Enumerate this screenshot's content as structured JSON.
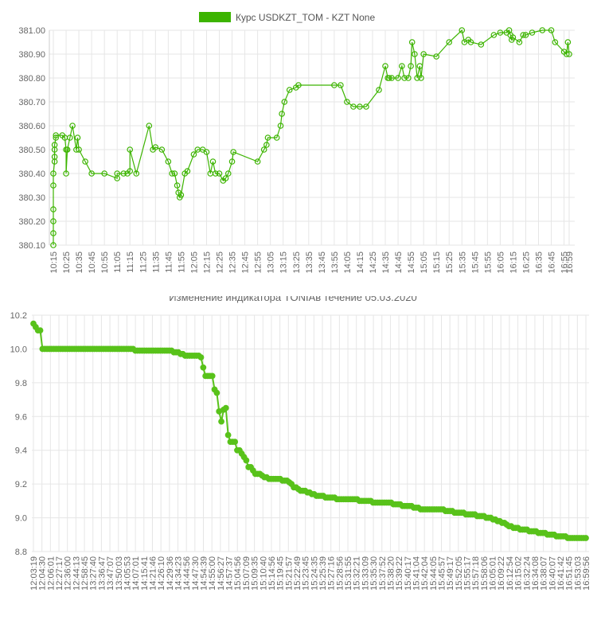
{
  "chart_data": [
    {
      "type": "line",
      "legend": {
        "label": "Курс USDKZT_TOM - KZT None",
        "color": "#3cb400"
      },
      "ylim": [
        380.1,
        381.0
      ],
      "y_ticks": [
        "381.00",
        "380.90",
        "380.80",
        "380.70",
        "380.60",
        "380.50",
        "380.40",
        "380.30",
        "380.20",
        "380.10"
      ],
      "x_ticks": [
        "10:15",
        "10:25",
        "10:35",
        "10:45",
        "10:55",
        "11:05",
        "11:15",
        "11:25",
        "11:35",
        "11:45",
        "11:55",
        "12:05",
        "12:15",
        "12:25",
        "12:35",
        "12:45",
        "12:55",
        "13:05",
        "13:15",
        "13:25",
        "13:35",
        "13:45",
        "13:55",
        "14:05",
        "14:15",
        "14:25",
        "14:35",
        "14:45",
        "14:55",
        "15:05",
        "15:15",
        "15:25",
        "15:35",
        "15:45",
        "15:55",
        "16:05",
        "16:15",
        "16:25",
        "16:35",
        "16:45",
        "16:55",
        "16:59"
      ],
      "series": [
        {
          "color": "#3cb400",
          "points": [
            [
              "10:15",
              380.1
            ],
            [
              "10:15",
              380.15
            ],
            [
              "10:15",
              380.2
            ],
            [
              "10:15",
              380.25
            ],
            [
              "10:15",
              380.35
            ],
            [
              "10:15",
              380.4
            ],
            [
              "10:16",
              380.45
            ],
            [
              "10:16",
              380.47
            ],
            [
              "10:16",
              380.5
            ],
            [
              "10:16",
              380.52
            ],
            [
              "10:17",
              380.55
            ],
            [
              "10:17",
              380.56
            ],
            [
              "10:22",
              380.56
            ],
            [
              "10:24",
              380.55
            ],
            [
              "10:25",
              380.5
            ],
            [
              "10:25",
              380.4
            ],
            [
              "10:26",
              380.5
            ],
            [
              "10:28",
              380.55
            ],
            [
              "10:30",
              380.6
            ],
            [
              "10:33",
              380.5
            ],
            [
              "10:34",
              380.55
            ],
            [
              "10:35",
              380.5
            ],
            [
              "10:40",
              380.45
            ],
            [
              "10:45",
              380.4
            ],
            [
              "10:55",
              380.4
            ],
            [
              "11:05",
              380.38
            ],
            [
              "11:05",
              380.4
            ],
            [
              "11:10",
              380.4
            ],
            [
              "11:13",
              380.4
            ],
            [
              "11:15",
              380.41
            ],
            [
              "11:15",
              380.5
            ],
            [
              "11:20",
              380.4
            ],
            [
              "11:30",
              380.6
            ],
            [
              "11:33",
              380.5
            ],
            [
              "11:35",
              380.51
            ],
            [
              "11:40",
              380.5
            ],
            [
              "11:45",
              380.45
            ],
            [
              "11:48",
              380.4
            ],
            [
              "11:50",
              380.4
            ],
            [
              "11:52",
              380.35
            ],
            [
              "11:53",
              380.32
            ],
            [
              "11:54",
              380.3
            ],
            [
              "11:55",
              380.31
            ],
            [
              "11:58",
              380.4
            ],
            [
              "12:00",
              380.41
            ],
            [
              "12:05",
              380.48
            ],
            [
              "12:08",
              380.5
            ],
            [
              "12:12",
              380.5
            ],
            [
              "12:15",
              380.49
            ],
            [
              "12:18",
              380.4
            ],
            [
              "12:20",
              380.45
            ],
            [
              "12:22",
              380.4
            ],
            [
              "12:25",
              380.4
            ],
            [
              "12:28",
              380.37
            ],
            [
              "12:30",
              380.38
            ],
            [
              "12:32",
              380.4
            ],
            [
              "12:35",
              380.45
            ],
            [
              "12:36",
              380.49
            ],
            [
              "12:55",
              380.45
            ],
            [
              "13:00",
              380.5
            ],
            [
              "13:02",
              380.52
            ],
            [
              "13:03",
              380.55
            ],
            [
              "13:10",
              380.55
            ],
            [
              "13:13",
              380.6
            ],
            [
              "13:14",
              380.65
            ],
            [
              "13:16",
              380.7
            ],
            [
              "13:20",
              380.75
            ],
            [
              "13:25",
              380.76
            ],
            [
              "13:27",
              380.77
            ],
            [
              "13:55",
              380.77
            ],
            [
              "14:00",
              380.77
            ],
            [
              "14:05",
              380.7
            ],
            [
              "14:10",
              380.68
            ],
            [
              "14:15",
              380.68
            ],
            [
              "14:20",
              380.68
            ],
            [
              "14:30",
              380.75
            ],
            [
              "14:35",
              380.85
            ],
            [
              "14:37",
              380.8
            ],
            [
              "14:38",
              380.8
            ],
            [
              "14:40",
              380.8
            ],
            [
              "14:45",
              380.8
            ],
            [
              "14:48",
              380.85
            ],
            [
              "14:50",
              380.8
            ],
            [
              "14:53",
              380.8
            ],
            [
              "14:55",
              380.85
            ],
            [
              "14:56",
              380.95
            ],
            [
              "14:58",
              380.9
            ],
            [
              "15:00",
              380.8
            ],
            [
              "15:02",
              380.85
            ],
            [
              "15:03",
              380.8
            ],
            [
              "15:05",
              380.9
            ],
            [
              "15:15",
              380.89
            ],
            [
              "15:25",
              380.95
            ],
            [
              "15:35",
              381.0
            ],
            [
              "15:37",
              380.95
            ],
            [
              "15:40",
              380.96
            ],
            [
              "15:42",
              380.95
            ],
            [
              "15:50",
              380.94
            ],
            [
              "16:00",
              380.98
            ],
            [
              "16:05",
              380.99
            ],
            [
              "16:10",
              380.99
            ],
            [
              "16:12",
              381.0
            ],
            [
              "16:13",
              380.98
            ],
            [
              "16:14",
              380.96
            ],
            [
              "16:15",
              380.97
            ],
            [
              "16:20",
              380.95
            ],
            [
              "16:23",
              380.98
            ],
            [
              "16:25",
              380.98
            ],
            [
              "16:30",
              380.99
            ],
            [
              "16:38",
              381.0
            ],
            [
              "16:45",
              381.0
            ],
            [
              "16:48",
              380.95
            ],
            [
              "16:55",
              380.91
            ],
            [
              "16:57",
              380.9
            ],
            [
              "16:58",
              380.95
            ],
            [
              "16:59",
              380.9
            ]
          ]
        }
      ]
    },
    {
      "type": "line",
      "title": "Изменение индикатора TONIAв течение 05.03.2020",
      "ylim": [
        8.8,
        10.2
      ],
      "y_ticks": [
        "10.2",
        "10.0",
        "9.8",
        "9.6",
        "9.4",
        "9.2",
        "9.0",
        "8.8"
      ],
      "x_ticks": [
        "12:03:19",
        "12:04:30",
        "12:06:01",
        "12:27:17",
        "12:36:00",
        "12:44:13",
        "12:58:45",
        "13:27:40",
        "13:36:47",
        "13:47:07",
        "13:50:03",
        "14:05:53",
        "14:07:01",
        "14:15:41",
        "14:21:46",
        "14:26:10",
        "14:29:36",
        "14:34:23",
        "14:44:56",
        "14:47:30",
        "14:54:39",
        "14:55:00",
        "14:56:27",
        "14:57:37",
        "15:04:56",
        "15:07:09",
        "15:09:35",
        "15:10:40",
        "15:14:56",
        "15:19:45",
        "15:21:57",
        "15:22:49",
        "15:23:45",
        "15:24:35",
        "15:25:39",
        "15:27:16",
        "15:28:56",
        "15:31:55",
        "15:32:21",
        "15:33:09",
        "15:35:30",
        "15:37:52",
        "15:38:20",
        "15:39:22",
        "15:40:17",
        "15:41:04",
        "15:42:04",
        "15:44:05",
        "15:45:57",
        "15:49:17",
        "15:52:05",
        "15:55:17",
        "15:57:18",
        "15:58:06",
        "16:05:01",
        "16:09:22",
        "16:12:54",
        "16:15:02",
        "16:32:24",
        "16:34:08",
        "16:38:07",
        "16:40:07",
        "16:41:42",
        "16:51:45",
        "16:53:03",
        "16:59:56"
      ],
      "series": [
        {
          "color": "#58c21a",
          "values": [
            10.15,
            10.13,
            10.11,
            10.11,
            10.0,
            10.0,
            10.0,
            10.0,
            10.0,
            10.0,
            10.0,
            10.0,
            10.0,
            10.0,
            10.0,
            10.0,
            10.0,
            10.0,
            10.0,
            10.0,
            10.0,
            10.0,
            10.0,
            10.0,
            10.0,
            10.0,
            10.0,
            10.0,
            10.0,
            10.0,
            10.0,
            10.0,
            10.0,
            10.0,
            10.0,
            10.0,
            10.0,
            10.0,
            10.0,
            10.0,
            10.0,
            10.0,
            10.0,
            10.0,
            10.0,
            9.99,
            9.99,
            9.99,
            9.99,
            9.99,
            9.99,
            9.99,
            9.99,
            9.99,
            9.99,
            9.99,
            9.99,
            9.99,
            9.99,
            9.99,
            9.99,
            9.99,
            9.98,
            9.98,
            9.98,
            9.97,
            9.97,
            9.96,
            9.96,
            9.96,
            9.96,
            9.96,
            9.96,
            9.96,
            9.95,
            9.89,
            9.84,
            9.84,
            9.84,
            9.84,
            9.76,
            9.74,
            9.63,
            9.57,
            9.64,
            9.65,
            9.49,
            9.45,
            9.45,
            9.45,
            9.4,
            9.4,
            9.38,
            9.36,
            9.34,
            9.3,
            9.3,
            9.28,
            9.26,
            9.26,
            9.26,
            9.25,
            9.24,
            9.24,
            9.23,
            9.23,
            9.23,
            9.23,
            9.23,
            9.23,
            9.22,
            9.22,
            9.22,
            9.21,
            9.2,
            9.18,
            9.18,
            9.17,
            9.16,
            9.16,
            9.16,
            9.15,
            9.15,
            9.14,
            9.14,
            9.13,
            9.13,
            9.13,
            9.13,
            9.12,
            9.12,
            9.12,
            9.12,
            9.12,
            9.11,
            9.11,
            9.11,
            9.11,
            9.11,
            9.11,
            9.11,
            9.11,
            9.11,
            9.11,
            9.1,
            9.1,
            9.1,
            9.1,
            9.1,
            9.1,
            9.09,
            9.09,
            9.09,
            9.09,
            9.09,
            9.09,
            9.09,
            9.09,
            9.09,
            9.08,
            9.08,
            9.08,
            9.08,
            9.07,
            9.07,
            9.07,
            9.07,
            9.07,
            9.06,
            9.06,
            9.06,
            9.05,
            9.05,
            9.05,
            9.05,
            9.05,
            9.05,
            9.05,
            9.05,
            9.05,
            9.05,
            9.05,
            9.04,
            9.04,
            9.04,
            9.04,
            9.03,
            9.03,
            9.03,
            9.03,
            9.03,
            9.02,
            9.02,
            9.02,
            9.02,
            9.02,
            9.01,
            9.01,
            9.01,
            9.01,
            9.0,
            9.0,
            9.0,
            8.99,
            8.99,
            8.98,
            8.98,
            8.97,
            8.97,
            8.96,
            8.95,
            8.95,
            8.94,
            8.94,
            8.94,
            8.93,
            8.93,
            8.93,
            8.93,
            8.92,
            8.92,
            8.92,
            8.92,
            8.91,
            8.91,
            8.91,
            8.91,
            8.9,
            8.9,
            8.9,
            8.9,
            8.89,
            8.89,
            8.89,
            8.89,
            8.89,
            8.88,
            8.88,
            8.88,
            8.88,
            8.88,
            8.88,
            8.88,
            8.88,
            8.88
          ]
        }
      ]
    }
  ]
}
